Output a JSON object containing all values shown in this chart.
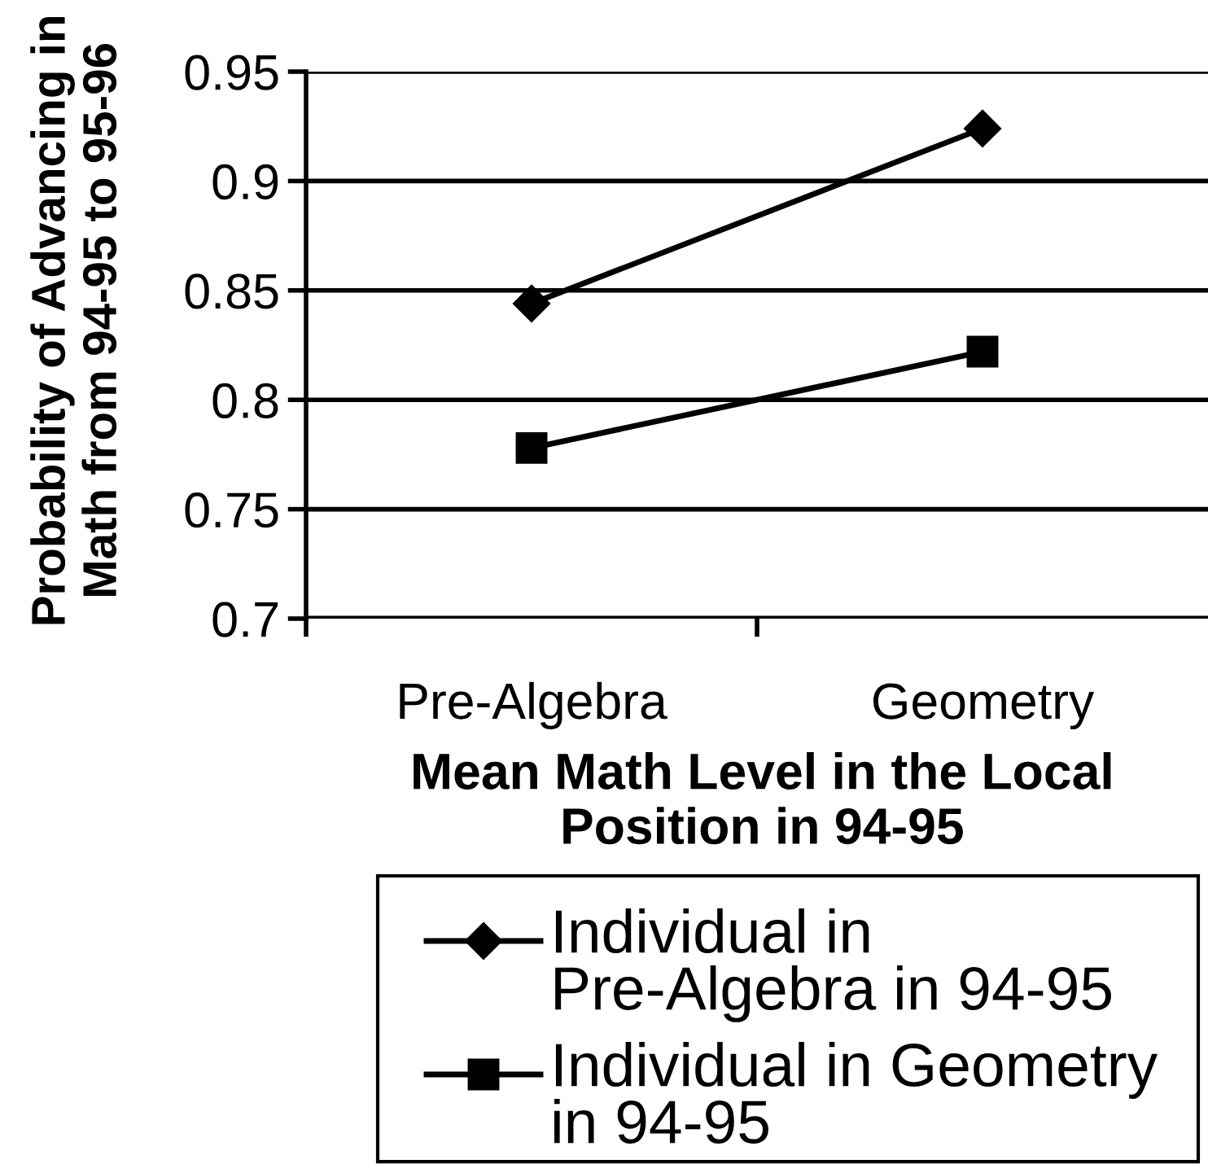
{
  "chart_data": {
    "type": "line",
    "xlabel": "Mean Math Level in the Local Position in 94-95",
    "ylabel": "Probability of Advancing in Math from 94-95 to 95-96",
    "categories": [
      "Pre-Algebra",
      "Geometry"
    ],
    "series": [
      {
        "name": "Individual in Pre-Algebra in 94-95",
        "color": "#000000",
        "values": [
          0.844,
          0.924
        ],
        "marker": "diamond"
      },
      {
        "name": "Individual in Geometry in 94-95",
        "color": "#000000",
        "values": [
          0.778,
          0.822
        ],
        "marker": "square"
      }
    ],
    "ylim": [
      0.7,
      0.95
    ],
    "yticks": [
      0.7,
      0.75,
      0.8,
      0.85,
      0.9,
      0.95
    ],
    "grid": "y",
    "legend": "bottom",
    "line_style": "solid"
  }
}
